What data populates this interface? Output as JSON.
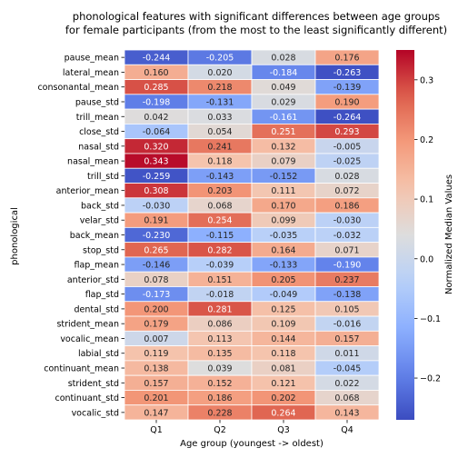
{
  "chart_data": {
    "type": "heatmap",
    "title_lines": [
      "phonological features with significant differences between age groups",
      "for female participants (from the most to the least significantly different)"
    ],
    "xlabel": "Age group (youngest -> oldest)",
    "ylabel": "phonological",
    "colorbar_label": "Normalized Median Values",
    "colormap": "coolwarm",
    "vmin": -0.27,
    "vmax": 0.35,
    "colorbar_ticks": [
      "0.3",
      "0.2",
      "0.1",
      "0.0",
      "−0.1",
      "−0.2"
    ],
    "colorbar_tick_values": [
      0.3,
      0.2,
      0.1,
      0.0,
      -0.1,
      -0.2
    ],
    "columns": [
      "Q1",
      "Q2",
      "Q3",
      "Q4"
    ],
    "rows": [
      "pause_mean",
      "lateral_mean",
      "consonantal_mean",
      "pause_std",
      "trill_mean",
      "close_std",
      "nasal_std",
      "nasal_mean",
      "trill_std",
      "anterior_mean",
      "back_std",
      "velar_std",
      "back_mean",
      "stop_std",
      "flap_mean",
      "anterior_std",
      "flap_std",
      "dental_std",
      "strident_mean",
      "vocalic_mean",
      "labial_std",
      "continuant_mean",
      "strident_std",
      "continuant_std",
      "vocalic_std"
    ],
    "values": [
      [
        -0.244,
        -0.205,
        0.028,
        0.176
      ],
      [
        0.16,
        0.02,
        -0.184,
        -0.263
      ],
      [
        0.285,
        0.218,
        0.049,
        -0.139
      ],
      [
        -0.198,
        -0.131,
        0.029,
        0.19
      ],
      [
        0.042,
        0.033,
        -0.161,
        -0.264
      ],
      [
        -0.064,
        0.054,
        0.251,
        0.293
      ],
      [
        0.32,
        0.241,
        0.132,
        -0.005
      ],
      [
        0.343,
        0.118,
        0.079,
        -0.025
      ],
      [
        -0.259,
        -0.143,
        -0.152,
        0.028
      ],
      [
        0.308,
        0.203,
        0.111,
        0.072
      ],
      [
        -0.03,
        0.068,
        0.17,
        0.186
      ],
      [
        0.191,
        0.254,
        0.099,
        -0.03
      ],
      [
        -0.23,
        -0.115,
        -0.035,
        -0.032
      ],
      [
        0.265,
        0.282,
        0.164,
        0.071
      ],
      [
        -0.146,
        -0.039,
        -0.133,
        -0.19
      ],
      [
        0.078,
        0.151,
        0.205,
        0.237
      ],
      [
        -0.173,
        -0.018,
        -0.049,
        -0.138
      ],
      [
        0.2,
        0.281,
        0.125,
        0.105
      ],
      [
        0.179,
        0.086,
        0.109,
        -0.016
      ],
      [
        0.007,
        0.113,
        0.144,
        0.157
      ],
      [
        0.119,
        0.135,
        0.118,
        0.011
      ],
      [
        0.138,
        0.039,
        0.081,
        -0.045
      ],
      [
        0.157,
        0.152,
        0.121,
        0.022
      ],
      [
        0.201,
        0.186,
        0.202,
        0.068
      ],
      [
        0.147,
        0.228,
        0.264,
        0.143
      ]
    ]
  }
}
